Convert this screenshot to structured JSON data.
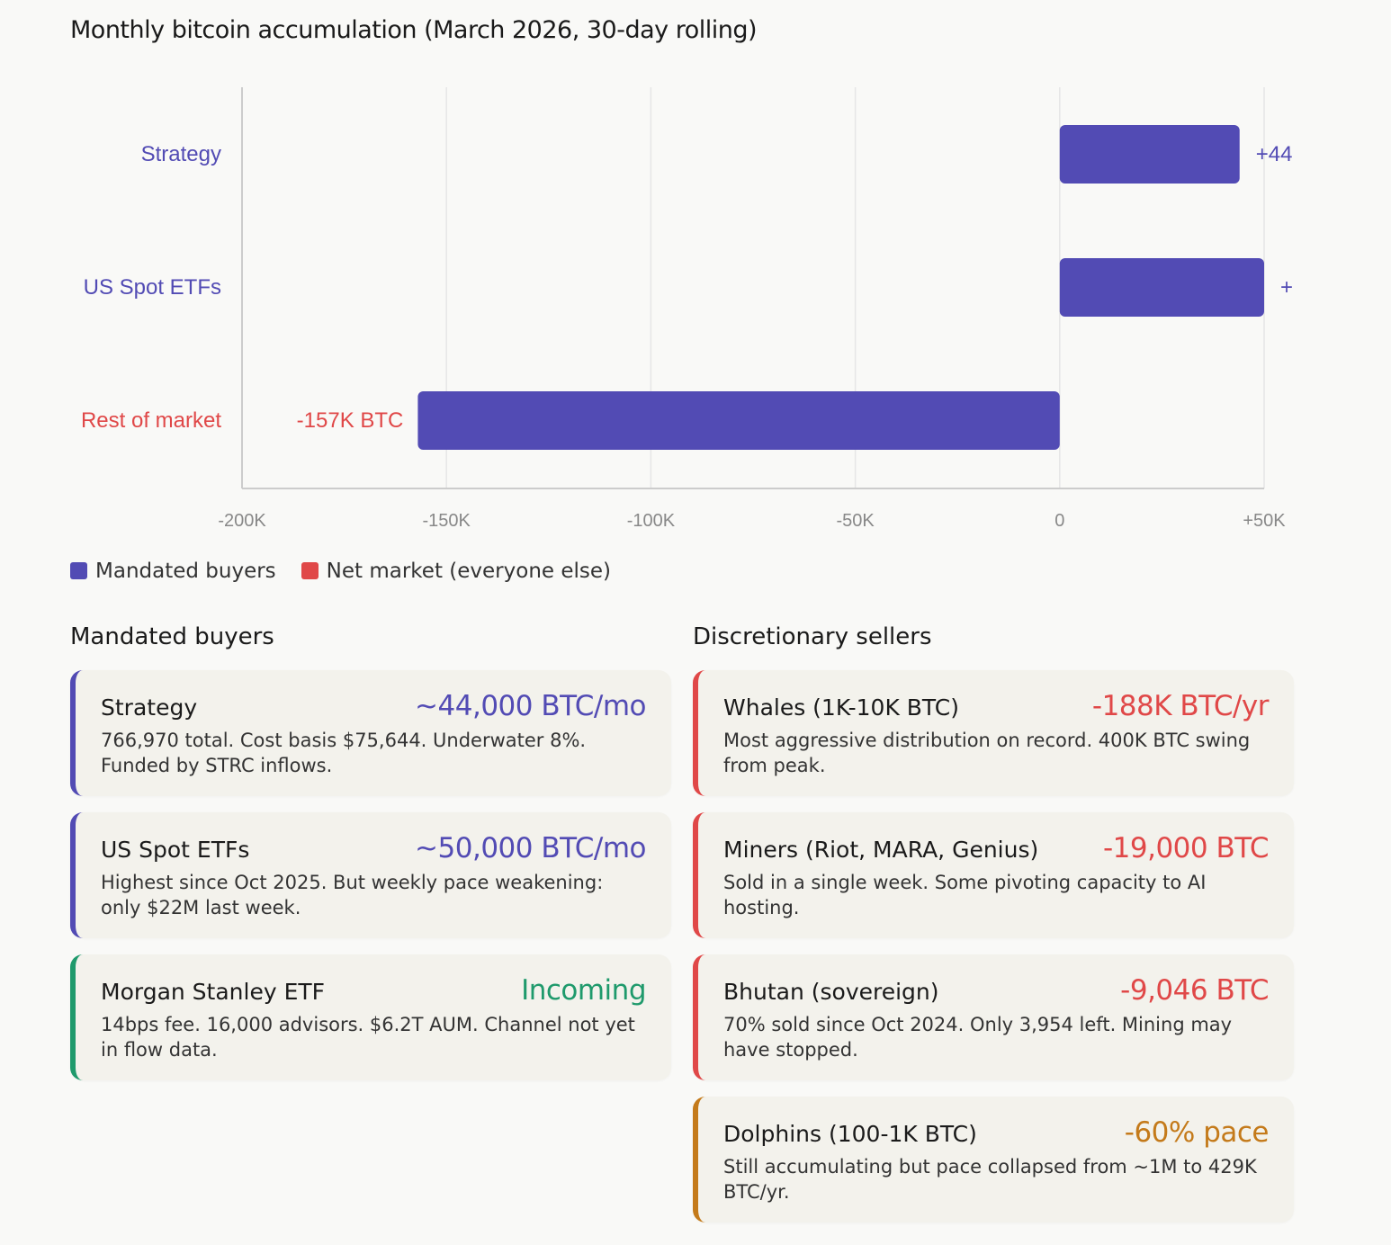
{
  "chart_data": {
    "type": "bar",
    "orientation": "horizontal",
    "title": "Monthly bitcoin accumulation (March 2026, 30-day rolling)",
    "categories": [
      "Strategy",
      "US Spot ETFs",
      "Rest of market"
    ],
    "values": [
      44000,
      50000,
      -157000
    ],
    "data_labels": [
      "+44",
      "+",
      "-157K BTC"
    ],
    "category_colors": [
      "#524bb4",
      "#524bb4",
      "#e04848"
    ],
    "bar_color": "#524bb4",
    "xlim": [
      -200000,
      50000
    ],
    "xticks": [
      -200000,
      -150000,
      -100000,
      -50000,
      0,
      50000
    ],
    "xtick_labels": [
      "-200K",
      "-150K",
      "-100K",
      "-50K",
      "0",
      "+50K"
    ],
    "grid": true,
    "legend": [
      {
        "label": "Mandated buyers",
        "color": "#524bb4"
      },
      {
        "label": "Net market (everyone else)",
        "color": "#e04848"
      }
    ],
    "legend_placement": "bottom-left"
  },
  "sections": {
    "buyers": {
      "title": "Mandated buyers",
      "cards": [
        {
          "name": "Strategy",
          "value": "~44,000 BTC/mo",
          "desc": "766,970 total. Cost basis $75,644. Underwater 8%. Funded by STRC inflows.",
          "color": "#524bb4"
        },
        {
          "name": "US Spot ETFs",
          "value": "~50,000 BTC/mo",
          "desc": "Highest since Oct 2025. But weekly pace weakening: only $22M last week.",
          "color": "#524bb4"
        },
        {
          "name": "Morgan Stanley ETF",
          "value": "Incoming",
          "desc": "14bps fee. 16,000 advisors. $6.2T AUM. Channel not yet in flow data.",
          "color": "#1f9a6c"
        }
      ]
    },
    "sellers": {
      "title": "Discretionary sellers",
      "cards": [
        {
          "name": "Whales (1K-10K BTC)",
          "value": "-188K BTC/yr",
          "desc": "Most aggressive distribution on record. 400K BTC swing from peak.",
          "color": "#e04848"
        },
        {
          "name": "Miners (Riot, MARA, Genius)",
          "value": "-19,000 BTC",
          "desc": "Sold in a single week. Some pivoting capacity to AI hosting.",
          "color": "#e04848"
        },
        {
          "name": "Bhutan (sovereign)",
          "value": "-9,046 BTC",
          "desc": "70% sold since Oct 2024. Only 3,954 left. Mining may have stopped.",
          "color": "#e04848"
        },
        {
          "name": "Dolphins (100-1K BTC)",
          "value": "-60% pace",
          "desc": "Still accumulating but pace collapsed from ~1M to 429K BTC/yr.",
          "color": "#c47a1a"
        }
      ]
    }
  }
}
